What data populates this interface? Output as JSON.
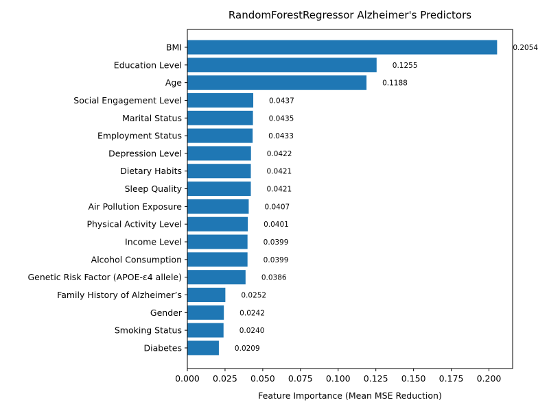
{
  "chart_data": {
    "type": "bar",
    "orientation": "horizontal",
    "title": "RandomForestRegressor Alzheimer's Predictors",
    "xlabel": "Feature Importance (Mean MSE Reduction)",
    "ylabel": "",
    "categories": [
      "BMI",
      "Education Level",
      "Age",
      "Social Engagement Level",
      "Marital Status",
      "Employment Status",
      "Depression Level",
      "Dietary Habits",
      "Sleep Quality",
      "Air Pollution Exposure",
      "Physical Activity Level",
      "Income Level",
      "Alcohol Consumption",
      "Genetic Risk Factor (APOE-ε4 allele)",
      "Family History of Alzheimer’s",
      "Gender",
      "Smoking Status",
      "Diabetes"
    ],
    "values": [
      0.2054,
      0.1255,
      0.1188,
      0.0437,
      0.0435,
      0.0433,
      0.0422,
      0.0421,
      0.0421,
      0.0407,
      0.0401,
      0.0399,
      0.0399,
      0.0386,
      0.0252,
      0.0242,
      0.024,
      0.0209
    ],
    "value_labels": [
      "0.2054",
      "0.1255",
      "0.1188",
      "0.0437",
      "0.0435",
      "0.0433",
      "0.0422",
      "0.0421",
      "0.0421",
      "0.0407",
      "0.0401",
      "0.0399",
      "0.0399",
      "0.0386",
      "0.0252",
      "0.0242",
      "0.0240",
      "0.0209"
    ],
    "xlim": [
      0,
      0.2157
    ],
    "xticks": [
      0.0,
      0.025,
      0.05,
      0.075,
      0.1,
      0.125,
      0.15,
      0.175,
      0.2
    ],
    "xtick_labels": [
      "0.000",
      "0.025",
      "0.050",
      "0.075",
      "0.100",
      "0.125",
      "0.150",
      "0.175",
      "0.200"
    ],
    "grid": false,
    "bar_color": "#1f77b4"
  }
}
